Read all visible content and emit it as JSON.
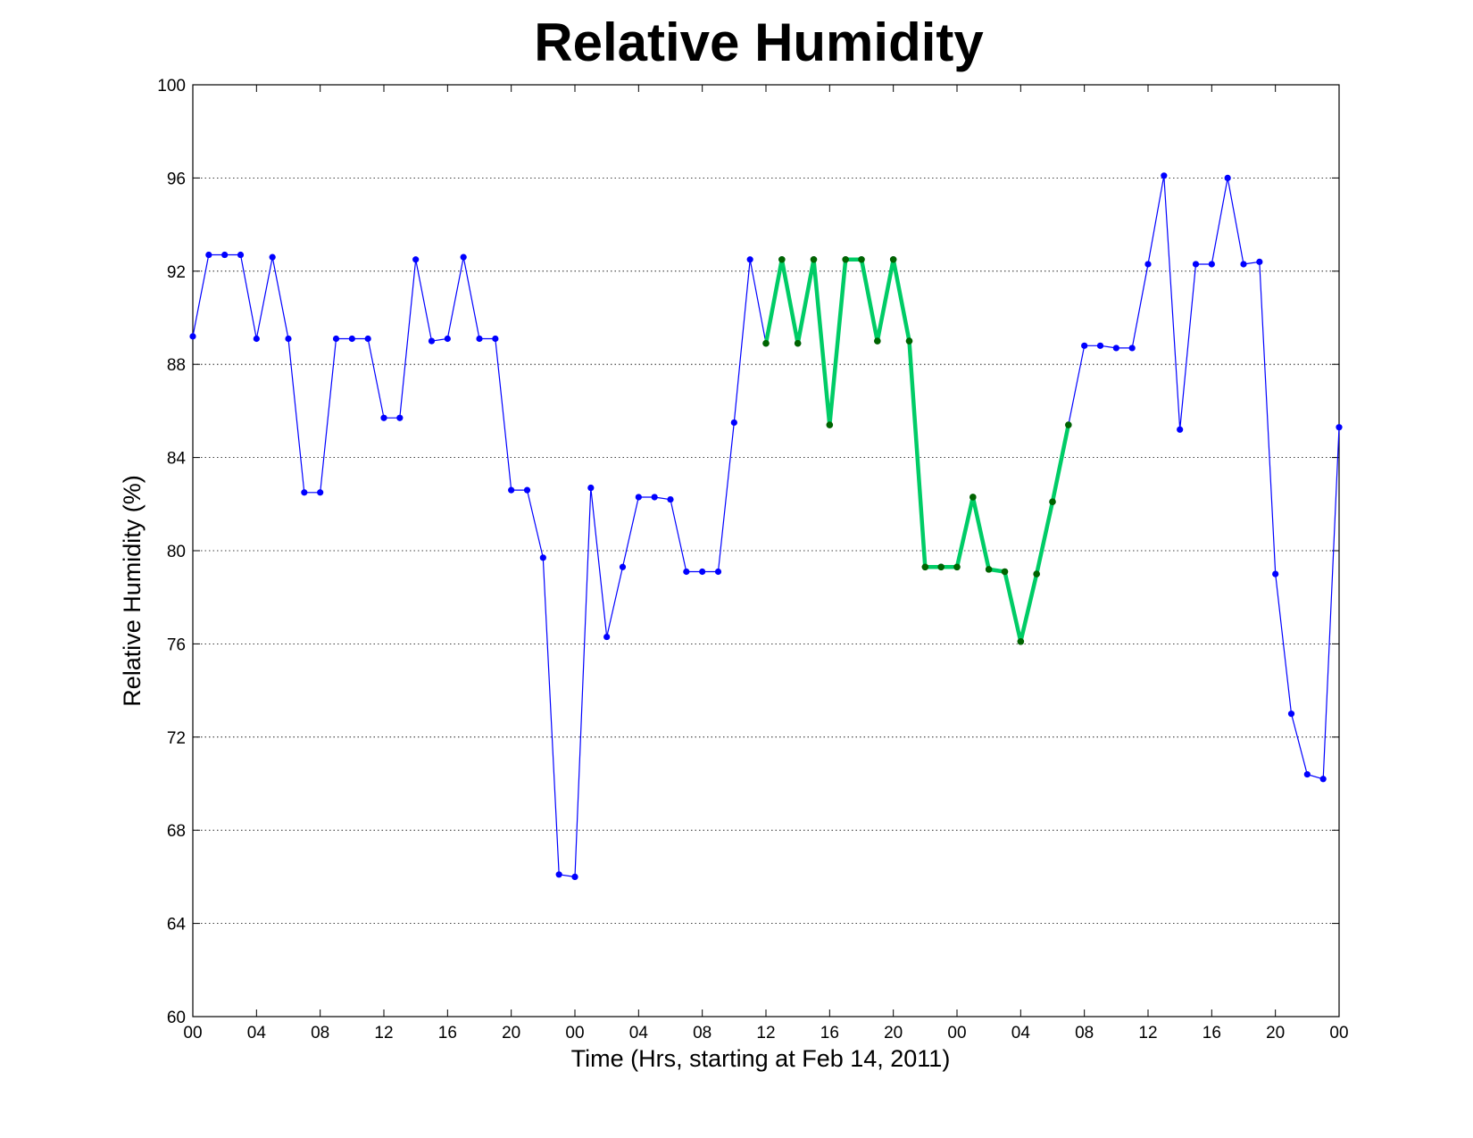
{
  "chart_data": {
    "type": "line",
    "title": "Relative Humidity",
    "xlabel": "Time (Hrs, starting at Feb 14, 2011)",
    "ylabel": "Relative Humidity (%)",
    "xlim": [
      0,
      72
    ],
    "ylim": [
      60,
      100
    ],
    "grid": "horizontal dotted",
    "y_ticks": [
      60,
      64,
      68,
      72,
      76,
      80,
      84,
      88,
      92,
      96,
      100
    ],
    "x_ticks": [
      {
        "x": 0,
        "label": "00"
      },
      {
        "x": 4,
        "label": "04"
      },
      {
        "x": 8,
        "label": "08"
      },
      {
        "x": 12,
        "label": "12"
      },
      {
        "x": 16,
        "label": "16"
      },
      {
        "x": 20,
        "label": "20"
      },
      {
        "x": 24,
        "label": "00"
      },
      {
        "x": 28,
        "label": "04"
      },
      {
        "x": 32,
        "label": "08"
      },
      {
        "x": 36,
        "label": "12"
      },
      {
        "x": 40,
        "label": "16"
      },
      {
        "x": 44,
        "label": "20"
      },
      {
        "x": 48,
        "label": "00"
      },
      {
        "x": 52,
        "label": "04"
      },
      {
        "x": 56,
        "label": "08"
      },
      {
        "x": 60,
        "label": "12"
      },
      {
        "x": 64,
        "label": "16"
      },
      {
        "x": 68,
        "label": "20"
      },
      {
        "x": 72,
        "label": "00"
      }
    ],
    "series": [
      {
        "color": "#0000ff",
        "marker_color": "#0000ff",
        "line_width": "thin",
        "x": [
          0,
          1,
          2,
          3,
          4,
          5,
          6,
          7,
          8,
          9,
          10,
          11,
          12,
          13,
          14,
          15,
          16,
          17,
          18,
          19,
          20,
          21,
          22,
          23,
          24,
          25,
          26,
          27,
          28,
          29,
          30,
          31,
          32,
          33,
          34,
          35,
          36,
          37,
          38,
          39,
          40,
          41,
          42,
          43,
          44,
          45,
          46,
          47,
          48,
          49,
          50,
          51,
          52,
          53,
          54,
          55,
          56,
          57,
          58,
          59,
          60,
          61,
          62,
          63,
          64,
          65,
          66,
          67,
          68,
          69,
          70,
          71,
          72
        ],
        "values": [
          89.2,
          92.7,
          92.7,
          92.7,
          89.1,
          92.6,
          89.1,
          82.5,
          82.5,
          89.1,
          89.1,
          89.1,
          85.7,
          85.7,
          92.5,
          89.0,
          89.1,
          92.6,
          89.1,
          89.1,
          82.6,
          82.6,
          79.7,
          66.1,
          66.0,
          82.7,
          76.3,
          79.3,
          82.3,
          82.3,
          82.2,
          79.1,
          79.1,
          79.1,
          85.5,
          92.5,
          88.9,
          92.5,
          88.9,
          92.5,
          85.4,
          92.5,
          92.5,
          89.0,
          92.5,
          89.0,
          79.3,
          79.3,
          79.3,
          82.3,
          79.2,
          79.1,
          76.1,
          79.0,
          82.1,
          85.4,
          88.8,
          88.8,
          88.7,
          88.7,
          92.3,
          96.1,
          85.2,
          92.3,
          92.3,
          96.0,
          92.3,
          92.4,
          79.0,
          73.0,
          70.4,
          70.2,
          85.3
        ]
      },
      {
        "color": "#00cc66",
        "marker_color": "#006400",
        "line_width": "thick",
        "x": [
          36,
          37,
          38,
          39,
          40,
          41,
          42,
          43,
          44,
          45,
          46,
          47,
          48,
          49,
          50,
          51,
          52,
          53,
          54,
          55
        ],
        "values": [
          88.9,
          92.5,
          88.9,
          92.5,
          85.4,
          92.5,
          92.5,
          89.0,
          92.5,
          89.0,
          79.3,
          79.3,
          79.3,
          82.3,
          79.2,
          79.1,
          76.1,
          79.0,
          82.1,
          85.4
        ]
      }
    ]
  }
}
